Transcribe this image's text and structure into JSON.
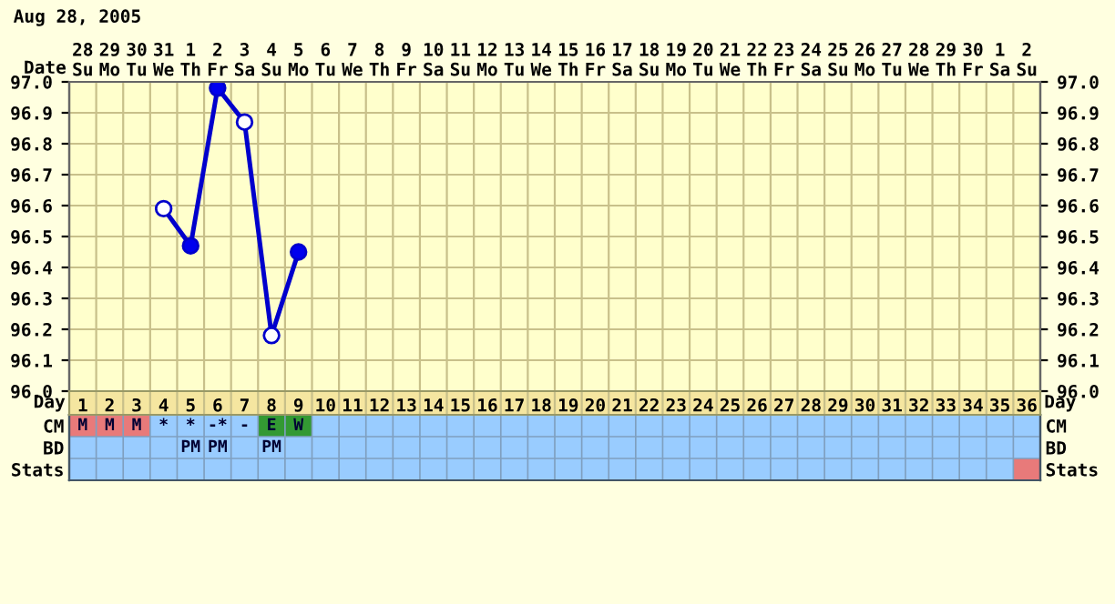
{
  "chart_data": [
    {
      "type": "line",
      "subtitle": "Aug 28, 2005",
      "xlabel": "Date",
      "categories": [
        "28\nSu",
        "29\nMo",
        "30\nTu",
        "31\nWe",
        "1\nTh",
        "2\nFr",
        "3\nSa",
        "4\nSu",
        "5\nMo",
        "6\nTu",
        "7\nWe",
        "8\nTh",
        "9\nFr",
        "10\nSa",
        "11\nSu",
        "12\nMo",
        "13\nTu",
        "14\nWe",
        "15\nTh",
        "16\nFr",
        "17\nSa",
        "18\nSu",
        "19\nMo",
        "20\nTu",
        "21\nWe",
        "22\nTh",
        "23\nFr",
        "24\nSa",
        "25\nSu",
        "26\nMo",
        "27\nTu",
        "28\nWe",
        "29\nTh",
        "30\nFr",
        "1\nSa",
        "2\nSu"
      ],
      "series": [
        {
          "type": "line",
          "color": "#0000cc",
          "marker": "none",
          "values": [
            null,
            null,
            null,
            96.59,
            96.47,
            96.98,
            96.87,
            96.18,
            96.45,
            null,
            null,
            null,
            null,
            null,
            null,
            null,
            null,
            null,
            null,
            null,
            null,
            null,
            null,
            null,
            null,
            null,
            null,
            null,
            null,
            null,
            null,
            null,
            null,
            null,
            null,
            null
          ]
        },
        {
          "type": "scatter",
          "color": "#0000ee",
          "marker": "circle",
          "values": [
            null,
            null,
            null,
            null,
            96.47,
            96.98,
            null,
            null,
            96.45,
            null,
            null,
            null,
            null,
            null,
            null,
            null,
            null,
            null,
            null,
            null,
            null,
            null,
            null,
            null,
            null,
            null,
            null,
            null,
            null,
            null,
            null,
            null,
            null,
            null,
            null,
            null
          ]
        },
        {
          "type": "scatter",
          "color": "#ffffff",
          "marker": "circle",
          "values": [
            null,
            null,
            null,
            96.59,
            null,
            null,
            96.87,
            96.18,
            null,
            null,
            null,
            null,
            null,
            null,
            null,
            null,
            null,
            null,
            null,
            null,
            null,
            null,
            null,
            null,
            null,
            null,
            null,
            null,
            null,
            null,
            null,
            null,
            null,
            null,
            null,
            null
          ]
        }
      ],
      "ylim": [
        96.0,
        97.0
      ],
      "yticks": [
        {
          "value": 96.0,
          "label": "96.0"
        },
        {
          "value": 96.1,
          "label": "96.1"
        },
        {
          "value": 96.2,
          "label": "96.2"
        },
        {
          "value": 96.3,
          "label": "96.3"
        },
        {
          "value": 96.4,
          "label": "96.4"
        },
        {
          "value": 96.5,
          "label": "96.5"
        },
        {
          "value": 96.6,
          "label": "96.6"
        },
        {
          "value": 96.7,
          "label": "96.7"
        },
        {
          "value": 96.8,
          "label": "96.8"
        },
        {
          "value": 96.9,
          "label": "96.9"
        },
        {
          "value": 97.0,
          "label": "97.0"
        }
      ],
      "y2lim": [
        96.0,
        97.0
      ],
      "y2ticks": [
        {
          "value": 96.0,
          "label": "96.0"
        },
        {
          "value": 96.1,
          "label": "96.1"
        },
        {
          "value": 96.2,
          "label": "96.2"
        },
        {
          "value": 96.3,
          "label": "96.3"
        },
        {
          "value": 96.4,
          "label": "96.4"
        },
        {
          "value": 96.5,
          "label": "96.5"
        },
        {
          "value": 96.6,
          "label": "96.6"
        },
        {
          "value": 96.7,
          "label": "96.7"
        },
        {
          "value": 96.8,
          "label": "96.8"
        },
        {
          "value": 96.9,
          "label": "96.9"
        },
        {
          "value": 97.0,
          "label": "97.0"
        }
      ],
      "grid": true,
      "legend": false
    },
    {
      "type": "heatmap",
      "xlabel": "Day",
      "categories": [
        "1",
        "2",
        "3",
        "4",
        "5",
        "6",
        "7",
        "8",
        "9",
        "10",
        "11",
        "12",
        "13",
        "14",
        "15",
        "16",
        "17",
        "18",
        "19",
        "20",
        "21",
        "22",
        "23",
        "24",
        "25",
        "26",
        "27",
        "28",
        "29",
        "30",
        "31",
        "32",
        "33",
        "34",
        "35",
        "36"
      ],
      "y_categories": [
        "CM",
        "BD",
        "Stats"
      ],
      "y2_categories": [
        "CM",
        "BD",
        "Stats"
      ],
      "cells": [
        [
          null,
          null,
          null,
          null,
          null,
          null,
          null,
          null,
          null,
          null,
          null,
          null,
          null,
          null,
          null,
          null,
          null,
          null,
          null,
          null,
          null,
          null,
          null,
          null,
          null,
          null,
          null,
          null,
          null,
          null,
          null,
          null,
          null,
          null,
          null,
          null
        ],
        [
          null,
          null,
          null,
          null,
          null,
          null,
          null,
          null,
          null,
          null,
          null,
          null,
          null,
          null,
          null,
          null,
          null,
          null,
          null,
          null,
          null,
          null,
          null,
          null,
          null,
          null,
          null,
          null,
          null,
          null,
          null,
          null,
          null,
          null,
          null,
          null
        ],
        [
          null,
          null,
          null,
          null,
          null,
          null,
          null,
          null,
          null,
          null,
          null,
          null,
          null,
          null,
          null,
          null,
          null,
          null,
          null,
          null,
          null,
          null,
          null,
          null,
          null,
          null,
          null,
          null,
          null,
          null,
          null,
          null,
          null,
          null,
          null,
          null
        ]
      ],
      "cell_labels": [
        [
          "M",
          "M",
          "M",
          "*",
          "*",
          "-*",
          "-",
          "E",
          "W",
          null,
          null,
          null,
          null,
          null,
          null,
          null,
          null,
          null,
          null,
          null,
          null,
          null,
          null,
          null,
          null,
          null,
          null,
          null,
          null,
          null,
          null,
          null,
          null,
          null,
          null,
          null
        ],
        [
          null,
          null,
          null,
          null,
          "PM",
          "PM",
          null,
          "PM",
          null,
          null,
          null,
          null,
          null,
          null,
          null,
          null,
          null,
          null,
          null,
          null,
          null,
          null,
          null,
          null,
          null,
          null,
          null,
          null,
          null,
          null,
          null,
          null,
          null,
          null,
          null,
          null
        ],
        [
          null,
          null,
          null,
          null,
          null,
          null,
          null,
          null,
          null,
          null,
          null,
          null,
          null,
          null,
          null,
          null,
          null,
          null,
          null,
          null,
          null,
          null,
          null,
          null,
          null,
          null,
          null,
          null,
          null,
          null,
          null,
          null,
          null,
          null,
          null,
          null
        ]
      ],
      "colors": [
        [
          "#e87a7a",
          "#e87a7a",
          "#e87a7a",
          "#99ccff",
          "#99ccff",
          "#99ccff",
          "#99ccff",
          "#339933",
          "#339933",
          "#99ccff",
          "#99ccff",
          "#99ccff",
          "#99ccff",
          "#99ccff",
          "#99ccff",
          "#99ccff",
          "#99ccff",
          "#99ccff",
          "#99ccff",
          "#99ccff",
          "#99ccff",
          "#99ccff",
          "#99ccff",
          "#99ccff",
          "#99ccff",
          "#99ccff",
          "#99ccff",
          "#99ccff",
          "#99ccff",
          "#99ccff",
          "#99ccff",
          "#99ccff",
          "#99ccff",
          "#99ccff",
          "#99ccff",
          "#99ccff"
        ],
        [
          "#99ccff",
          "#99ccff",
          "#99ccff",
          "#99ccff",
          "#99ccff",
          "#99ccff",
          "#99ccff",
          "#99ccff",
          "#99ccff",
          "#99ccff",
          "#99ccff",
          "#99ccff",
          "#99ccff",
          "#99ccff",
          "#99ccff",
          "#99ccff",
          "#99ccff",
          "#99ccff",
          "#99ccff",
          "#99ccff",
          "#99ccff",
          "#99ccff",
          "#99ccff",
          "#99ccff",
          "#99ccff",
          "#99ccff",
          "#99ccff",
          "#99ccff",
          "#99ccff",
          "#99ccff",
          "#99ccff",
          "#99ccff",
          "#99ccff",
          "#99ccff",
          "#99ccff",
          "#99ccff"
        ],
        [
          "#99ccff",
          "#99ccff",
          "#99ccff",
          "#99ccff",
          "#99ccff",
          "#99ccff",
          "#99ccff",
          "#99ccff",
          "#99ccff",
          "#99ccff",
          "#99ccff",
          "#99ccff",
          "#99ccff",
          "#99ccff",
          "#99ccff",
          "#99ccff",
          "#99ccff",
          "#99ccff",
          "#99ccff",
          "#99ccff",
          "#99ccff",
          "#99ccff",
          "#99ccff",
          "#99ccff",
          "#99ccff",
          "#99ccff",
          "#99ccff",
          "#99ccff",
          "#99ccff",
          "#99ccff",
          "#99ccff",
          "#99ccff",
          "#99ccff",
          "#99ccff",
          "#99ccff",
          "#e87a7a"
        ]
      ]
    }
  ]
}
